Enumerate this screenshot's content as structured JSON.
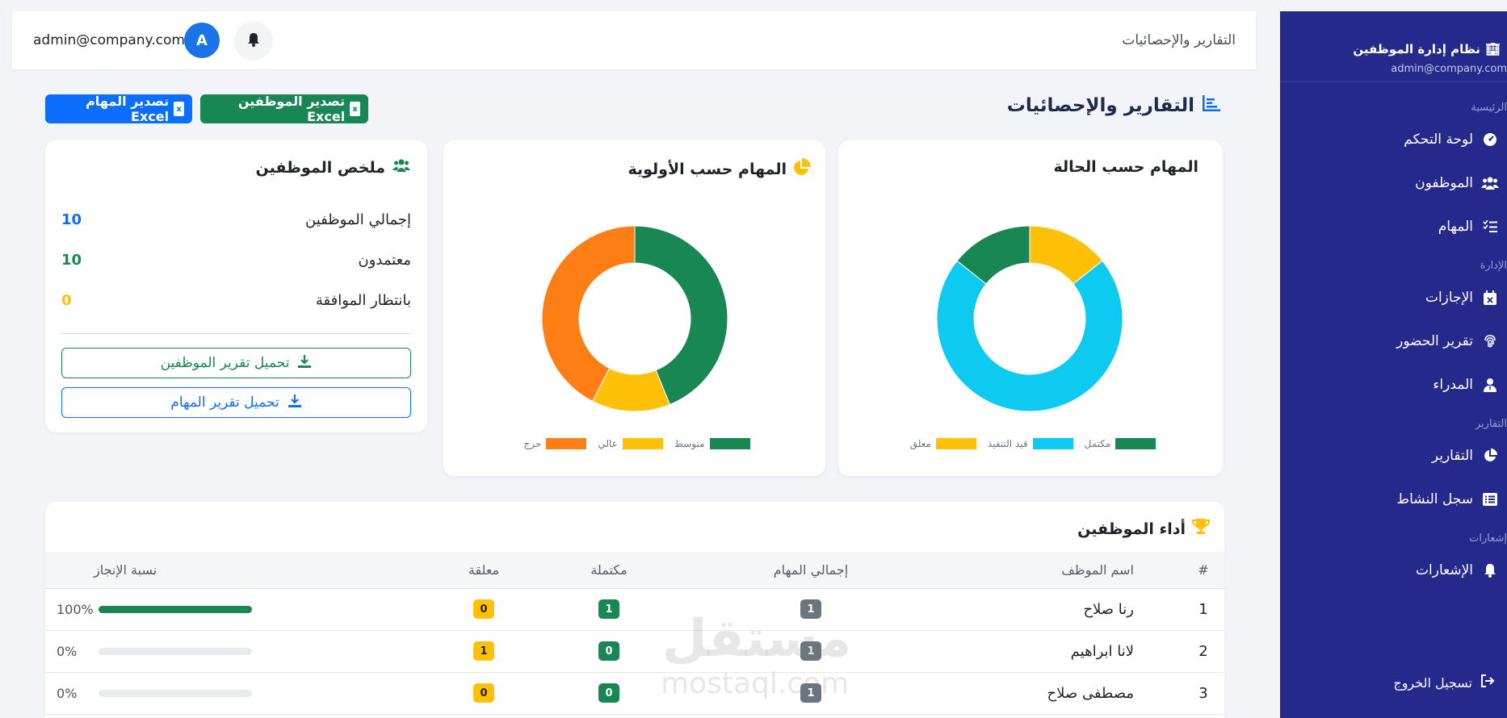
{
  "topbar": {
    "title": "التقارير والإحصائيات",
    "user_email": "admin@company.com",
    "avatar_letter": "A"
  },
  "sidebar": {
    "brand": "نظام إدارة الموظفين",
    "email": "admin@company.com",
    "sections": [
      {
        "label": "الرئيسية"
      },
      {
        "label": "الإدارة"
      },
      {
        "label": "التقارير"
      },
      {
        "label": "إشعارات"
      }
    ],
    "items": [
      {
        "label": "لوحة التحكم",
        "icon": "gauge-icon"
      },
      {
        "label": "الموظفون",
        "icon": "users-icon"
      },
      {
        "label": "المهام",
        "icon": "tasks-icon"
      },
      {
        "label": "الإجازات",
        "icon": "calendar-x-icon"
      },
      {
        "label": "تقرير الحضور",
        "icon": "fingerprint-icon"
      },
      {
        "label": "المدراء",
        "icon": "user-tie-icon"
      },
      {
        "label": "التقارير",
        "icon": "pie-chart-icon"
      },
      {
        "label": "سجل النشاط",
        "icon": "list-icon"
      },
      {
        "label": "الإشعارات",
        "icon": "bell-icon"
      }
    ],
    "logout": "تسجيل الخروج"
  },
  "page": {
    "title": "التقارير والإحصائيات",
    "export_employees": "تصدير الموظفين Excel",
    "export_tasks": "تصدير المهام Excel"
  },
  "status_card": {
    "title": "المهام حسب الحالة"
  },
  "priority_card": {
    "title": "المهام حسب الأولوية"
  },
  "summary_card": {
    "title": "ملخص الموظفين",
    "rows": [
      {
        "label": "إجمالي الموظفين",
        "value": "10",
        "color": "#0d6efd"
      },
      {
        "label": "معتمدون",
        "value": "10",
        "color": "#198754"
      },
      {
        "label": "بانتظار الموافقة",
        "value": "0",
        "color": "#ffc107"
      }
    ],
    "download_employees": "تحميل تقرير الموظفين",
    "download_tasks": "تحميل تقرير المهام"
  },
  "chart_data": [
    {
      "type": "pie",
      "categories": [
        "مكتمل",
        "قيد التنفيذ",
        "معلق"
      ],
      "values": [
        1,
        5,
        1
      ],
      "colors": [
        "#198754",
        "#0dcaf0",
        "#ffc107"
      ],
      "donut": true,
      "legend": "bottom"
    },
    {
      "type": "pie",
      "categories": [
        "متوسط",
        "عالي",
        "حرج"
      ],
      "values": [
        3.2,
        1,
        3.1
      ],
      "colors": [
        "#198754",
        "#ffc107",
        "#fd7e14"
      ],
      "donut": true,
      "legend": "bottom"
    }
  ],
  "performance": {
    "title": "أداء الموظفين",
    "headers": [
      "#",
      "اسم الموظف",
      "إجمالي المهام",
      "مكتملة",
      "معلقة",
      "نسبة الإنجاز"
    ],
    "rows": [
      {
        "num": "1",
        "name": "رنا صلاح",
        "total": "1",
        "done": "1",
        "pending": "0",
        "pct": "100%",
        "progress": 1.0
      },
      {
        "num": "2",
        "name": "لانا ابراهيم",
        "total": "1",
        "done": "0",
        "pending": "1",
        "pct": "0%",
        "progress": 0
      },
      {
        "num": "3",
        "name": "مصطفى صلاح",
        "total": "1",
        "done": "0",
        "pending": "0",
        "pct": "0%",
        "progress": 0
      }
    ]
  },
  "watermark": {
    "arabic": "مستقل",
    "latin": "mostaql.com"
  }
}
